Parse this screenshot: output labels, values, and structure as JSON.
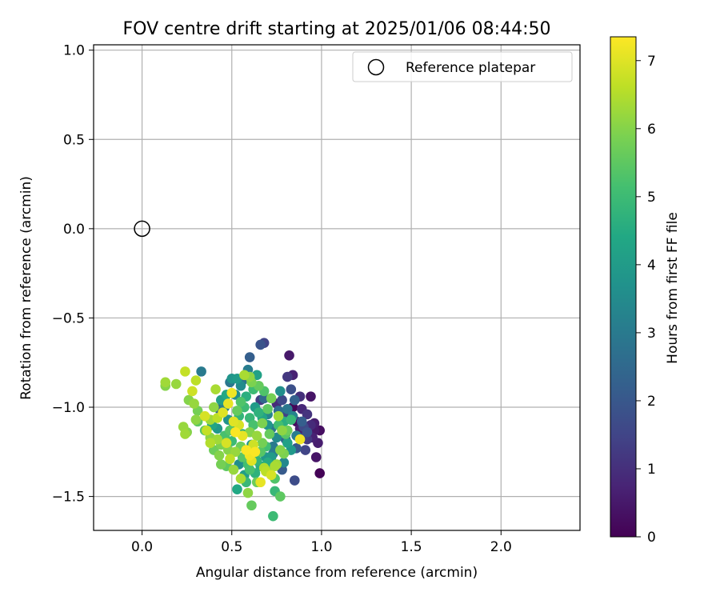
{
  "chart_data": {
    "type": "scatter",
    "title": "FOV centre drift starting at 2025/01/06 08:44:50",
    "xlabel": "Angular distance from reference (arcmin)",
    "ylabel": "Rotation from reference (arcmin)",
    "xlim": [
      -0.27,
      2.44
    ],
    "ylim": [
      -1.69,
      1.03
    ],
    "xticks": [
      0.0,
      0.5,
      1.0,
      1.5,
      2.0
    ],
    "xtick_labels": [
      "0.0",
      "0.5",
      "1.0",
      "1.5",
      "2.0"
    ],
    "yticks": [
      -1.5,
      -1.0,
      -0.5,
      0.0,
      0.5,
      1.0
    ],
    "ytick_labels": [
      "−1.5",
      "−1.0",
      "−0.5",
      "0.0",
      "0.5",
      "1.0"
    ],
    "grid": true,
    "legend": {
      "placement": "top-right",
      "entries": [
        {
          "label": "Reference platepar",
          "marker": "open-circle"
        }
      ]
    },
    "reference_point": {
      "x": 0.0,
      "y": 0.0
    },
    "colorbar": {
      "label": "Hours from first FF file",
      "colormap": "viridis",
      "range": [
        0,
        7.35
      ],
      "ticks": [
        0,
        1,
        2,
        3,
        4,
        5,
        6,
        7
      ],
      "tick_labels": [
        "0",
        "1",
        "2",
        "3",
        "4",
        "5",
        "6",
        "7"
      ]
    },
    "series": [
      {
        "color_by": "hours",
        "points": [
          [
            0.99,
            -1.37,
            0.05
          ],
          [
            0.97,
            -1.28,
            0.4
          ],
          [
            0.98,
            -1.2,
            0.6
          ],
          [
            0.96,
            -1.13,
            0.5
          ],
          [
            0.99,
            -1.13,
            0.3
          ],
          [
            0.94,
            -1.1,
            0.9
          ],
          [
            0.92,
            -1.04,
            1.1
          ],
          [
            0.89,
            -1.01,
            0.8
          ],
          [
            0.88,
            -1.12,
            0.6
          ],
          [
            0.86,
            -1.08,
            0.2
          ],
          [
            0.84,
            -1.0,
            0.1
          ],
          [
            0.84,
            -0.82,
            0.7
          ],
          [
            0.82,
            -0.71,
            0.5
          ],
          [
            0.81,
            -0.83,
            1.2
          ],
          [
            0.83,
            -0.9,
            1.8
          ],
          [
            0.88,
            -0.94,
            1.0
          ],
          [
            0.94,
            -0.94,
            0.4
          ],
          [
            0.9,
            -1.17,
            1.3
          ],
          [
            0.91,
            -1.24,
            1.5
          ],
          [
            0.86,
            -1.23,
            2.0
          ],
          [
            0.85,
            -1.41,
            1.7
          ],
          [
            0.92,
            -1.14,
            1.9
          ],
          [
            0.95,
            -1.17,
            0.7
          ],
          [
            0.89,
            -1.08,
            2.2
          ],
          [
            0.8,
            -1.05,
            1.4
          ],
          [
            0.78,
            -0.96,
            1.6
          ],
          [
            0.75,
            -0.98,
            0.9
          ],
          [
            0.76,
            -1.02,
            2.6
          ],
          [
            0.8,
            -1.18,
            2.4
          ],
          [
            0.79,
            -1.31,
            3.4
          ],
          [
            0.78,
            -1.35,
            2.1
          ],
          [
            0.73,
            -1.22,
            3.0
          ],
          [
            0.72,
            -1.12,
            2.8
          ],
          [
            0.7,
            -1.04,
            3.3
          ],
          [
            0.68,
            -0.95,
            2.5
          ],
          [
            0.66,
            -0.96,
            1.3
          ],
          [
            0.68,
            -0.64,
            1.5
          ],
          [
            0.66,
            -0.65,
            1.9
          ],
          [
            0.6,
            -0.72,
            2.2
          ],
          [
            0.64,
            -0.82,
            4.2
          ],
          [
            0.59,
            -0.79,
            3.1
          ],
          [
            0.56,
            -0.85,
            2.7
          ],
          [
            0.55,
            -0.88,
            3.5
          ],
          [
            0.53,
            -0.84,
            4.0
          ],
          [
            0.5,
            -0.84,
            3.8
          ],
          [
            0.49,
            -0.86,
            2.9
          ],
          [
            0.52,
            -0.93,
            3.6
          ],
          [
            0.47,
            -0.93,
            4.4
          ],
          [
            0.46,
            -1.0,
            3.2
          ],
          [
            0.43,
            -1.01,
            2.3
          ],
          [
            0.44,
            -0.96,
            4.1
          ],
          [
            0.42,
            -1.12,
            3.9
          ],
          [
            0.39,
            -1.1,
            4.3
          ],
          [
            0.33,
            -0.8,
            3.0
          ],
          [
            0.48,
            -1.07,
            3.7
          ],
          [
            0.51,
            -1.11,
            4.5
          ],
          [
            0.54,
            -1.05,
            4.8
          ],
          [
            0.57,
            -1.0,
            5.0
          ],
          [
            0.56,
            -1.15,
            4.6
          ],
          [
            0.6,
            -1.06,
            4.9
          ],
          [
            0.62,
            -1.1,
            5.2
          ],
          [
            0.65,
            -1.03,
            4.7
          ],
          [
            0.61,
            -1.21,
            3.8
          ],
          [
            0.58,
            -1.27,
            4.4
          ],
          [
            0.54,
            -1.32,
            3.6
          ],
          [
            0.57,
            -1.38,
            4.1
          ],
          [
            0.53,
            -1.46,
            4.4
          ],
          [
            0.58,
            -1.42,
            4.9
          ],
          [
            0.6,
            -1.35,
            5.2
          ],
          [
            0.64,
            -1.3,
            4.8
          ],
          [
            0.66,
            -1.25,
            5.4
          ],
          [
            0.7,
            -1.31,
            4.5
          ],
          [
            0.69,
            -1.22,
            5.1
          ],
          [
            0.72,
            -1.28,
            4.0
          ],
          [
            0.74,
            -1.4,
            5.3
          ],
          [
            0.77,
            -1.5,
            5.5
          ],
          [
            0.74,
            -1.47,
            4.9
          ],
          [
            0.73,
            -1.61,
            5.0
          ],
          [
            0.61,
            -1.55,
            5.6
          ],
          [
            0.67,
            -1.2,
            5.8
          ],
          [
            0.71,
            -1.15,
            5.6
          ],
          [
            0.76,
            -1.1,
            5.1
          ],
          [
            0.79,
            -1.08,
            4.6
          ],
          [
            0.81,
            -1.13,
            5.7
          ],
          [
            0.81,
            -1.2,
            4.2
          ],
          [
            0.83,
            -1.24,
            3.9
          ],
          [
            0.77,
            -1.24,
            6.0
          ],
          [
            0.79,
            -1.26,
            5.9
          ],
          [
            0.75,
            -1.32,
            6.3
          ],
          [
            0.71,
            -1.36,
            6.0
          ],
          [
            0.68,
            -1.34,
            6.5
          ],
          [
            0.64,
            -1.42,
            5.7
          ],
          [
            0.59,
            -1.48,
            6.1
          ],
          [
            0.55,
            -1.4,
            6.4
          ],
          [
            0.51,
            -1.35,
            6.2
          ],
          [
            0.47,
            -1.33,
            5.5
          ],
          [
            0.44,
            -1.32,
            5.8
          ],
          [
            0.49,
            -1.29,
            6.6
          ],
          [
            0.48,
            -1.24,
            6.0
          ],
          [
            0.44,
            -1.21,
            5.9
          ],
          [
            0.42,
            -1.18,
            6.3
          ],
          [
            0.38,
            -1.2,
            6.5
          ],
          [
            0.36,
            -1.13,
            6.7
          ],
          [
            0.38,
            -1.07,
            6.3
          ],
          [
            0.4,
            -1.0,
            6.1
          ],
          [
            0.41,
            -0.9,
            6.4
          ],
          [
            0.3,
            -0.85,
            6.6
          ],
          [
            0.24,
            -0.8,
            6.7
          ],
          [
            0.19,
            -0.87,
            6.2
          ],
          [
            0.13,
            -0.88,
            6.0
          ],
          [
            0.13,
            -0.86,
            6.3
          ],
          [
            0.26,
            -0.96,
            6.0
          ],
          [
            0.29,
            -0.98,
            6.2
          ],
          [
            0.31,
            -1.02,
            5.8
          ],
          [
            0.3,
            -1.07,
            6.1
          ],
          [
            0.31,
            -1.08,
            5.5
          ],
          [
            0.23,
            -1.11,
            6.2
          ],
          [
            0.25,
            -1.14,
            6.0
          ],
          [
            0.24,
            -1.15,
            6.3
          ],
          [
            0.28,
            -0.91,
            6.8
          ],
          [
            0.35,
            -1.05,
            6.9
          ],
          [
            0.45,
            -1.03,
            7.0
          ],
          [
            0.48,
            -0.98,
            7.1
          ],
          [
            0.5,
            -0.92,
            7.2
          ],
          [
            0.51,
            -1.08,
            7.0
          ],
          [
            0.52,
            -1.14,
            7.3
          ],
          [
            0.54,
            -1.1,
            6.9
          ],
          [
            0.56,
            -1.16,
            7.1
          ],
          [
            0.58,
            -1.24,
            7.3
          ],
          [
            0.6,
            -1.27,
            7.2
          ],
          [
            0.61,
            -1.3,
            7.0
          ],
          [
            0.63,
            -1.25,
            7.3
          ],
          [
            0.62,
            -1.21,
            6.8
          ],
          [
            0.66,
            -1.42,
            7.1
          ],
          [
            0.69,
            -1.36,
            6.6
          ],
          [
            0.72,
            -1.38,
            6.9
          ],
          [
            0.74,
            -1.33,
            6.4
          ],
          [
            0.88,
            -1.18,
            7.2
          ],
          [
            0.84,
            -1.05,
            3.3
          ],
          [
            0.81,
            -1.01,
            2.9
          ],
          [
            0.75,
            -1.17,
            3.5
          ],
          [
            0.7,
            -1.1,
            3.8
          ],
          [
            0.67,
            -1.06,
            4.3
          ],
          [
            0.63,
            -1.0,
            4.0
          ],
          [
            0.58,
            -0.94,
            4.6
          ],
          [
            0.55,
            -0.97,
            5.3
          ],
          [
            0.53,
            -1.02,
            5.6
          ],
          [
            0.49,
            -1.13,
            5.4
          ],
          [
            0.46,
            -1.16,
            5.2
          ],
          [
            0.5,
            -1.19,
            5.0
          ],
          [
            0.55,
            -1.22,
            5.7
          ],
          [
            0.6,
            -1.14,
            6.0
          ],
          [
            0.64,
            -1.16,
            6.2
          ],
          [
            0.67,
            -1.09,
            5.9
          ],
          [
            0.7,
            -1.01,
            5.5
          ],
          [
            0.72,
            -0.95,
            5.8
          ],
          [
            0.68,
            -0.91,
            5.3
          ],
          [
            0.65,
            -0.88,
            5.6
          ],
          [
            0.61,
            -0.86,
            5.9
          ],
          [
            0.57,
            -0.82,
            6.4
          ],
          [
            0.6,
            -0.83,
            6.1
          ],
          [
            0.62,
            -0.9,
            5.0
          ],
          [
            0.76,
            -1.05,
            6.3
          ],
          [
            0.78,
            -1.13,
            6.1
          ],
          [
            0.8,
            -1.15,
            5.4
          ],
          [
            0.83,
            -1.07,
            4.9
          ],
          [
            0.86,
            -1.16,
            3.1
          ],
          [
            0.9,
            -1.11,
            1.6
          ],
          [
            0.92,
            -1.18,
            1.2
          ],
          [
            0.96,
            -1.09,
            0.6
          ],
          [
            0.85,
            -0.96,
            2.3
          ],
          [
            0.77,
            -0.91,
            3.6
          ],
          [
            0.73,
            -1.26,
            3.1
          ],
          [
            0.69,
            -1.28,
            3.9
          ],
          [
            0.66,
            -1.33,
            4.5
          ],
          [
            0.63,
            -1.37,
            4.7
          ],
          [
            0.59,
            -1.32,
            5.1
          ],
          [
            0.56,
            -1.28,
            5.4
          ],
          [
            0.52,
            -1.25,
            6.2
          ],
          [
            0.47,
            -1.2,
            6.9
          ],
          [
            0.43,
            -1.27,
            6.0
          ],
          [
            0.4,
            -1.24,
            5.7
          ],
          [
            0.38,
            -1.17,
            6.1
          ],
          [
            0.35,
            -1.13,
            5.4
          ],
          [
            0.42,
            -1.06,
            6.6
          ]
        ]
      }
    ]
  }
}
